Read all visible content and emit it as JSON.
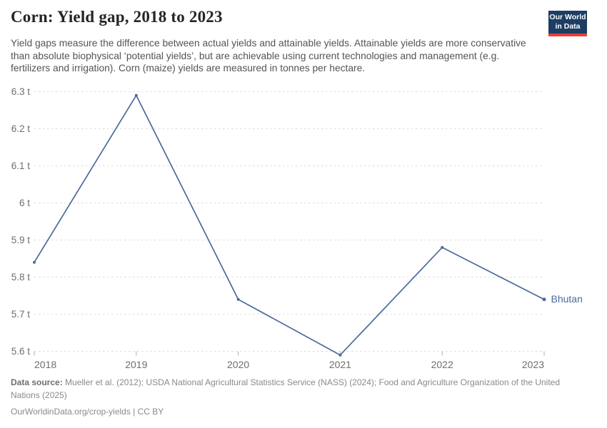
{
  "header": {
    "title": "Corn: Yield gap, 2018 to 2023",
    "logo": {
      "line1": "Our World",
      "line2": "in Data"
    }
  },
  "subtitle": "Yield gaps measure the difference between actual yields and attainable yields. Attainable yields are more conservative than absolute biophysical ‘potential yields’, but are achievable using current technologies and management (e.g. fertilizers and irrigation). Corn (maize) yields are measured in tonnes per hectare.",
  "chart_data": {
    "type": "line",
    "title": "Corn: Yield gap, 2018 to 2023",
    "unit": "t",
    "x": [
      2018,
      2019,
      2020,
      2021,
      2022,
      2023
    ],
    "xtick_labels": [
      "2018",
      "2019",
      "2020",
      "2021",
      "2022",
      "2023"
    ],
    "series": [
      {
        "name": "Bhutan",
        "color": "#4c6a9c",
        "values": [
          5.84,
          6.29,
          5.74,
          5.59,
          5.88,
          5.74
        ]
      }
    ],
    "yticks": [
      5.6,
      5.7,
      5.8,
      5.9,
      6,
      6.1,
      6.2,
      6.3
    ],
    "ytick_labels": [
      "5.6 t",
      "5.7 t",
      "5.8 t",
      "5.9 t",
      "6 t",
      "6.1 t",
      "6.2 t",
      "6.3 t"
    ],
    "ylim": [
      5.55,
      6.32
    ],
    "xlim": [
      2018,
      2023
    ],
    "grid": "horizontal-dashed",
    "legend_position": "line-end-label"
  },
  "footer": {
    "datasource_label": "Data source:",
    "datasource": " Mueller et al. (2012); USDA National Agricultural Statistics Service (NASS) (2024); Food and Agriculture Organization of the United Nations (2025)",
    "url": "OurWorldinData.org/crop-yields",
    "separator": " | ",
    "license": "CC BY"
  },
  "colors": {
    "line": "#4c6a9c",
    "grid": "#dcdcdc",
    "tick": "#ababab",
    "axis_text": "#6e6e6e"
  }
}
